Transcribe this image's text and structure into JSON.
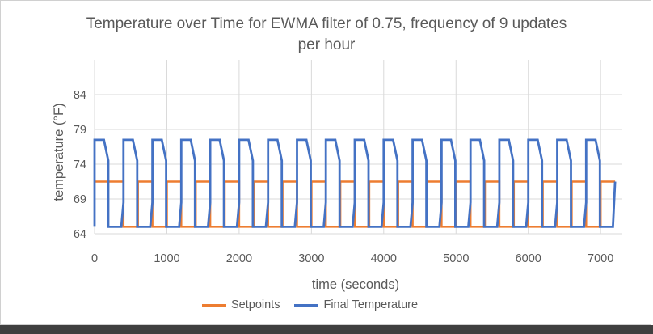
{
  "chart_data": {
    "type": "line",
    "title": "Temperature over Time for EWMA filter of 0.75, frequency of 9 updates per hour",
    "xlabel": "time (seconds)",
    "ylabel": "temperature (°F)",
    "xlim": [
      0,
      7300
    ],
    "ylim": [
      64,
      89
    ],
    "xticks": [
      0,
      1000,
      2000,
      3000,
      4000,
      5000,
      6000,
      7000
    ],
    "yticks": [
      64,
      69,
      74,
      79,
      84
    ],
    "grid": true,
    "legend_position": "bottom",
    "series": [
      {
        "name": "Setpoints",
        "color": "#ED7D31",
        "x": [
          0,
          400,
          400,
          600,
          600,
          800,
          800,
          1000,
          1000,
          1200,
          1200,
          1400,
          1400,
          1600,
          1600,
          1800,
          1800,
          2000,
          2000,
          2200,
          2200,
          2400,
          2400,
          2600,
          2600,
          2800,
          2800,
          3000,
          3000,
          3200,
          3200,
          3400,
          3400,
          3600,
          3600,
          3800,
          3800,
          4000,
          4000,
          4200,
          4200,
          4400,
          4400,
          4600,
          4600,
          4800,
          4800,
          5000,
          5000,
          5200,
          5200,
          5400,
          5400,
          5600,
          5600,
          5800,
          5800,
          6000,
          6000,
          6200,
          6200,
          6400,
          6400,
          6600,
          6600,
          6800,
          6800,
          7000,
          7000,
          7200
        ],
        "y": [
          71.5,
          71.5,
          65,
          65,
          71.5,
          71.5,
          65,
          65,
          71.5,
          71.5,
          65,
          65,
          71.5,
          71.5,
          65,
          65,
          71.5,
          71.5,
          65,
          65,
          71.5,
          71.5,
          65,
          65,
          71.5,
          71.5,
          65,
          65,
          71.5,
          71.5,
          65,
          65,
          71.5,
          71.5,
          65,
          65,
          71.5,
          71.5,
          65,
          65,
          71.5,
          71.5,
          65,
          65,
          71.5,
          71.5,
          65,
          65,
          71.5,
          71.5,
          65,
          65,
          71.5,
          71.5,
          65,
          65,
          71.5,
          71.5,
          65,
          65,
          71.5,
          71.5,
          65,
          65,
          71.5,
          71.5,
          65,
          65,
          71.5,
          71.5
        ]
      },
      {
        "name": "Final Temperature",
        "color": "#4472C4",
        "x": [
          0,
          0,
          130,
          190,
          190,
          370,
          400,
          400,
          530,
          590,
          590,
          770,
          800,
          800,
          930,
          990,
          990,
          1170,
          1200,
          1200,
          1330,
          1390,
          1390,
          1570,
          1600,
          1600,
          1730,
          1790,
          1790,
          1970,
          2000,
          2000,
          2130,
          2190,
          2190,
          2370,
          2400,
          2400,
          2530,
          2590,
          2590,
          2770,
          2800,
          2800,
          2930,
          2990,
          2990,
          3170,
          3200,
          3200,
          3330,
          3390,
          3390,
          3570,
          3600,
          3600,
          3730,
          3790,
          3790,
          3970,
          4000,
          4000,
          4130,
          4190,
          4190,
          4370,
          4400,
          4400,
          4530,
          4590,
          4590,
          4770,
          4800,
          4800,
          4930,
          4990,
          4990,
          5170,
          5200,
          5200,
          5330,
          5390,
          5390,
          5570,
          5600,
          5600,
          5730,
          5790,
          5790,
          5970,
          6000,
          6000,
          6130,
          6190,
          6190,
          6370,
          6400,
          6400,
          6530,
          6590,
          6590,
          6770,
          6800,
          6800,
          6930,
          6990,
          6990,
          7170,
          7200
        ],
        "y": [
          65,
          77.5,
          77.5,
          74.5,
          65,
          65,
          68.5,
          77.5,
          77.5,
          74.5,
          65,
          65,
          68.5,
          77.5,
          77.5,
          74.5,
          65,
          65,
          68.5,
          77.5,
          77.5,
          74.5,
          65,
          65,
          68.5,
          77.5,
          77.5,
          74.5,
          65,
          65,
          68.5,
          77.5,
          77.5,
          74.5,
          65,
          65,
          68.5,
          77.5,
          77.5,
          74.5,
          65,
          65,
          68.5,
          77.5,
          77.5,
          74.5,
          65,
          65,
          68.5,
          77.5,
          77.5,
          74.5,
          65,
          65,
          68.5,
          77.5,
          77.5,
          74.5,
          65,
          65,
          68.5,
          77.5,
          77.5,
          74.5,
          65,
          65,
          68.5,
          77.5,
          77.5,
          74.5,
          65,
          65,
          68.5,
          77.5,
          77.5,
          74.5,
          65,
          65,
          68.5,
          77.5,
          77.5,
          74.5,
          65,
          65,
          68.5,
          77.5,
          77.5,
          74.5,
          65,
          65,
          68.5,
          77.5,
          77.5,
          74.5,
          65,
          65,
          68.5,
          77.5,
          77.5,
          74.5,
          65,
          65,
          68.5,
          77.5,
          77.5,
          74.5,
          65,
          65,
          71.5
        ]
      }
    ]
  }
}
